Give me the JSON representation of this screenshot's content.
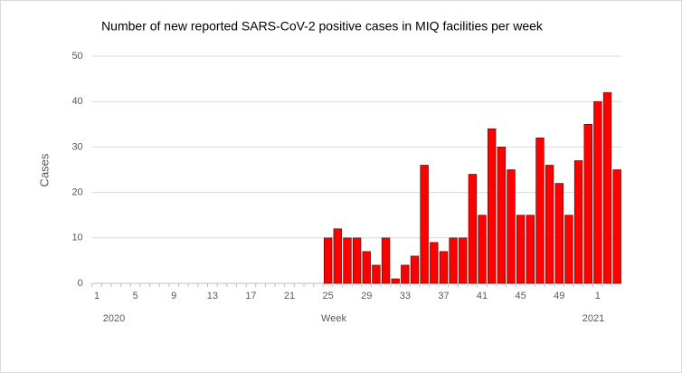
{
  "chart_data": {
    "type": "bar",
    "title": "Number of new reported SARS-CoV-2 positive cases in MIQ facilities per week",
    "y_label": "Cases",
    "x_label": "Week",
    "year_labels": [
      "2020",
      "2021"
    ],
    "categories": [
      "1",
      null,
      null,
      null,
      "5",
      null,
      null,
      null,
      "9",
      null,
      null,
      null,
      "13",
      null,
      null,
      null,
      "17",
      null,
      null,
      null,
      "21",
      null,
      null,
      null,
      "25",
      null,
      null,
      null,
      "29",
      null,
      null,
      null,
      "33",
      null,
      null,
      null,
      "37",
      null,
      null,
      null,
      "41",
      null,
      null,
      null,
      "45",
      null,
      null,
      null,
      "49",
      null,
      null,
      null,
      "1",
      null,
      null
    ],
    "values": [
      0,
      0,
      0,
      0,
      0,
      0,
      0,
      0,
      0,
      0,
      0,
      0,
      0,
      0,
      0,
      0,
      0,
      0,
      0,
      0,
      0,
      0,
      0,
      0,
      10,
      12,
      10,
      10,
      7,
      4,
      10,
      1,
      4,
      6,
      26,
      9,
      7,
      10,
      10,
      24,
      15,
      34,
      30,
      25,
      15,
      15,
      32,
      26,
      22,
      15,
      27,
      35,
      40,
      42,
      25
    ],
    "color": "#ff0000",
    "ylim": [
      0,
      50
    ],
    "yticks": [
      0,
      10,
      20,
      30,
      40,
      50
    ],
    "grid": true
  }
}
